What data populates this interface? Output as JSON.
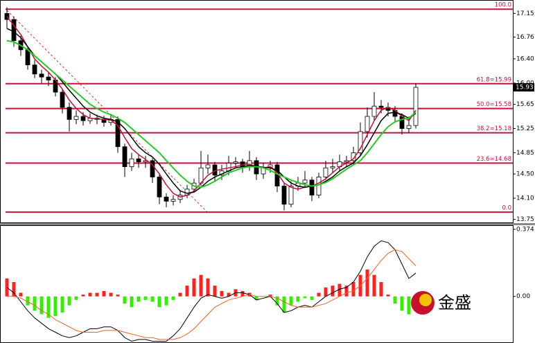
{
  "chart_data": [
    {
      "type": "candlestick",
      "ylim": [
        13.7,
        17.36
      ],
      "yticks": [
        17.15,
        16.76,
        {
          "value": 16.4,
          "label": "16.40"
        },
        {
          "value": 16.0,
          "label": "16.00"
        },
        15.65,
        15.25,
        14.85,
        {
          "value": 14.5,
          "label": "14.50"
        },
        {
          "value": 14.1,
          "label": "14.10"
        },
        13.75
      ],
      "open": [
        17.15,
        17.05,
        16.7,
        16.55,
        16.3,
        16.15,
        16.1,
        16.05,
        15.85,
        15.6,
        15.4,
        15.45,
        15.38,
        15.42,
        15.4,
        15.35,
        15.4,
        14.95,
        14.62,
        14.75,
        14.7,
        14.72,
        14.45,
        14.12,
        14.05,
        14.08,
        14.15,
        14.25,
        14.35,
        14.6,
        14.65,
        14.48,
        14.55,
        14.68,
        14.7,
        14.62,
        14.72,
        14.5,
        14.6,
        14.65,
        14.3,
        14.0,
        14.3,
        14.35,
        14.4,
        14.15,
        14.45,
        14.6,
        14.62,
        14.7,
        14.72,
        14.85,
        15.2,
        15.45,
        15.62,
        15.6,
        15.55,
        15.45,
        15.25,
        15.3
      ],
      "high": [
        17.25,
        17.1,
        16.78,
        16.6,
        16.38,
        16.22,
        16.18,
        16.1,
        15.9,
        15.68,
        15.55,
        15.52,
        15.5,
        15.48,
        15.46,
        15.48,
        15.45,
        15.0,
        14.85,
        14.82,
        14.8,
        14.76,
        14.5,
        14.18,
        14.15,
        14.22,
        14.32,
        14.42,
        14.88,
        14.82,
        14.7,
        14.65,
        14.8,
        14.78,
        14.75,
        14.88,
        14.78,
        14.68,
        14.72,
        14.7,
        14.35,
        14.38,
        14.45,
        14.55,
        14.45,
        14.52,
        14.72,
        14.75,
        14.82,
        14.8,
        14.95,
        15.35,
        15.6,
        15.85,
        15.72,
        15.68,
        15.62,
        15.5,
        15.45,
        16.0
      ],
      "low": [
        16.9,
        16.6,
        16.45,
        16.22,
        16.08,
        16.0,
        15.95,
        15.78,
        15.5,
        15.2,
        15.32,
        15.3,
        15.33,
        15.32,
        15.28,
        15.3,
        14.85,
        14.45,
        14.55,
        14.6,
        14.6,
        14.35,
        14.0,
        13.95,
        13.98,
        14.02,
        14.1,
        14.2,
        14.3,
        14.5,
        14.38,
        14.4,
        14.48,
        14.6,
        14.52,
        14.55,
        14.4,
        14.42,
        14.52,
        14.2,
        13.9,
        13.95,
        14.22,
        14.28,
        14.05,
        14.1,
        14.4,
        14.52,
        14.55,
        14.62,
        14.65,
        14.8,
        15.1,
        15.38,
        15.5,
        15.45,
        15.35,
        15.15,
        15.18,
        15.25
      ],
      "close": [
        17.05,
        16.7,
        16.55,
        16.3,
        16.15,
        16.1,
        16.05,
        15.85,
        15.6,
        15.4,
        15.45,
        15.38,
        15.42,
        15.4,
        15.35,
        15.4,
        14.95,
        14.62,
        14.75,
        14.7,
        14.72,
        14.45,
        14.12,
        14.05,
        14.08,
        14.15,
        14.25,
        14.35,
        14.6,
        14.65,
        14.48,
        14.55,
        14.68,
        14.7,
        14.62,
        14.72,
        14.5,
        14.6,
        14.65,
        14.3,
        14.0,
        14.3,
        14.35,
        14.4,
        14.15,
        14.45,
        14.6,
        14.62,
        14.7,
        14.72,
        14.85,
        15.2,
        15.45,
        15.62,
        15.6,
        15.55,
        15.45,
        15.25,
        15.3,
        15.93
      ],
      "ma_lines": [
        {
          "color": "#c8102e",
          "values": [
            17.1,
            16.95,
            16.8,
            16.6,
            16.4,
            16.28,
            16.18,
            16.05,
            15.9,
            15.72,
            15.58,
            15.48,
            15.42,
            15.41,
            15.4,
            15.39,
            15.3,
            15.1,
            14.92,
            14.82,
            14.74,
            14.65,
            14.5,
            14.32,
            14.18,
            14.12,
            14.15,
            14.22,
            14.35,
            14.48,
            14.55,
            14.58,
            14.6,
            14.62,
            14.65,
            14.66,
            14.62,
            14.6,
            14.62,
            14.52,
            14.35,
            14.28,
            14.25,
            14.28,
            14.3,
            14.35,
            14.42,
            14.52,
            14.62,
            14.68,
            14.75,
            14.92,
            15.15,
            15.38,
            15.55,
            15.6,
            15.55,
            15.45,
            15.38,
            15.55
          ]
        },
        {
          "color": "#000000",
          "values": [
            16.9,
            16.85,
            16.75,
            16.6,
            16.45,
            16.35,
            16.25,
            16.15,
            16.02,
            15.88,
            15.75,
            15.62,
            15.52,
            15.46,
            15.42,
            15.4,
            15.36,
            15.25,
            15.1,
            14.95,
            14.85,
            14.78,
            14.66,
            14.5,
            14.35,
            14.22,
            14.18,
            14.2,
            14.28,
            14.38,
            14.45,
            14.5,
            14.55,
            14.6,
            14.62,
            14.64,
            14.63,
            14.61,
            14.6,
            14.56,
            14.45,
            14.35,
            14.3,
            14.28,
            14.3,
            14.32,
            14.38,
            14.45,
            14.55,
            14.62,
            14.68,
            14.8,
            14.98,
            15.18,
            15.38,
            15.5,
            15.52,
            15.48,
            15.42,
            15.5
          ]
        },
        {
          "color": "#22cc22",
          "values": [
            16.7,
            16.68,
            16.62,
            16.55,
            16.45,
            16.35,
            16.25,
            16.15,
            16.05,
            15.95,
            15.85,
            15.75,
            15.65,
            15.58,
            15.52,
            15.48,
            15.42,
            15.35,
            15.25,
            15.15,
            15.05,
            14.95,
            14.85,
            14.72,
            14.6,
            14.48,
            14.38,
            14.3,
            14.28,
            14.32,
            14.38,
            14.45,
            14.52,
            14.56,
            14.6,
            14.62,
            14.62,
            14.6,
            14.56,
            14.5,
            14.45,
            14.4,
            14.36,
            14.32,
            14.3,
            14.32,
            14.36,
            14.42,
            14.5,
            14.58,
            14.65,
            14.72,
            14.85,
            15.0,
            15.15,
            15.28,
            15.36,
            15.4,
            15.42,
            15.52
          ]
        }
      ],
      "fib_color": "#c8103c",
      "fib_levels": [
        {
          "value": 17.22,
          "label": "100.0"
        },
        {
          "value": 15.99,
          "label": "61.8=15.99"
        },
        {
          "value": 15.58,
          "label": "50.0=15.58"
        },
        {
          "value": 15.18,
          "label": "38.2=15.18"
        },
        {
          "value": 14.68,
          "label": "23.6=14.68"
        },
        {
          "value": 13.87,
          "label": "0.0"
        }
      ],
      "last_price": 15.93
    },
    {
      "type": "macd",
      "ylim": [
        -0.256,
        0.393
      ],
      "yticks": [
        0.374,
        {
          "value": 0,
          "label": "0.00"
        }
      ],
      "positive_color": "#ff2020",
      "negative_color": "#33ee00",
      "histogram": [
        0.1,
        0.08,
        0.02,
        -0.05,
        -0.08,
        -0.1,
        -0.12,
        -0.11,
        -0.09,
        -0.05,
        -0.02,
        0.01,
        0.02,
        0.02,
        0.03,
        0.02,
        0.01,
        -0.04,
        -0.06,
        -0.03,
        -0.02,
        -0.03,
        -0.06,
        -0.05,
        -0.02,
        0.02,
        0.06,
        0.1,
        0.12,
        0.1,
        0.06,
        0.03,
        0.02,
        0.04,
        0.03,
        0.02,
        -0.02,
        0.0,
        0.01,
        -0.05,
        -0.09,
        -0.05,
        -0.03,
        -0.01,
        -0.02,
        0.02,
        0.05,
        0.06,
        0.07,
        0.06,
        0.08,
        0.12,
        0.15,
        0.12,
        0.08,
        0.01,
        -0.04,
        -0.08,
        -0.1,
        -0.05
      ],
      "lines": [
        {
          "color": "#000000",
          "values": [
            0.05,
            0.02,
            -0.03,
            -0.08,
            -0.12,
            -0.15,
            -0.18,
            -0.2,
            -0.22,
            -0.23,
            -0.22,
            -0.2,
            -0.18,
            -0.18,
            -0.17,
            -0.17,
            -0.19,
            -0.23,
            -0.25,
            -0.24,
            -0.24,
            -0.25,
            -0.25,
            -0.25,
            -0.22,
            -0.18,
            -0.12,
            -0.06,
            -0.01,
            0.01,
            0.0,
            -0.01,
            0.0,
            0.02,
            0.02,
            0.01,
            -0.02,
            -0.01,
            0.0,
            -0.04,
            -0.09,
            -0.08,
            -0.06,
            -0.05,
            -0.06,
            -0.03,
            0.0,
            0.02,
            0.04,
            0.05,
            0.08,
            0.14,
            0.22,
            0.28,
            0.31,
            0.3,
            0.26,
            0.18,
            0.1,
            0.13
          ]
        },
        {
          "color": "#f06020",
          "values": [
            0.0,
            0.0,
            -0.01,
            -0.03,
            -0.05,
            -0.08,
            -0.1,
            -0.13,
            -0.15,
            -0.17,
            -0.19,
            -0.2,
            -0.2,
            -0.2,
            -0.19,
            -0.19,
            -0.19,
            -0.2,
            -0.21,
            -0.22,
            -0.23,
            -0.23,
            -0.24,
            -0.24,
            -0.24,
            -0.23,
            -0.21,
            -0.18,
            -0.14,
            -0.1,
            -0.06,
            -0.04,
            -0.02,
            -0.01,
            0.0,
            0.01,
            0.0,
            0.0,
            0.0,
            -0.01,
            -0.03,
            -0.05,
            -0.06,
            -0.06,
            -0.06,
            -0.05,
            -0.04,
            -0.02,
            0.0,
            0.02,
            0.03,
            0.06,
            0.1,
            0.15,
            0.2,
            0.24,
            0.26,
            0.25,
            0.21,
            0.17
          ]
        }
      ]
    }
  ],
  "logo": {
    "text": "金盛"
  }
}
